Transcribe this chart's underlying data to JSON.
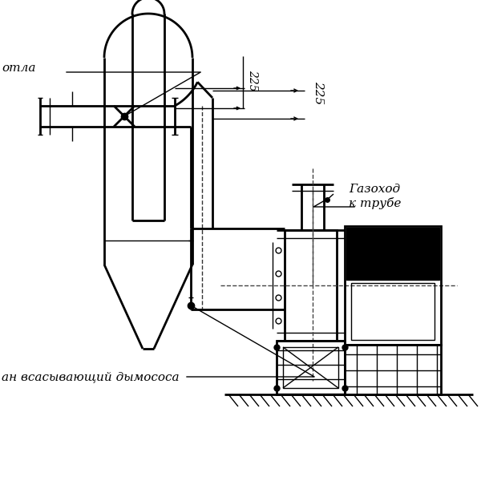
{
  "bg_color": "#ffffff",
  "line_color": "#000000",
  "label_kotla": "отла",
  "label_gazohod": "Газоход\nк трубе",
  "label_vsan": "ан всасывающий дымососа",
  "dim_225": "225",
  "fig_width": 6.0,
  "fig_height": 6.0,
  "dpi": 100
}
